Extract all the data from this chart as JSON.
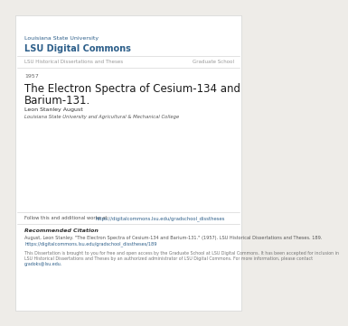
{
  "bg_color": "#eeece8",
  "page_bg": "#ffffff",
  "header_univ": "Louisiana State University",
  "header_title": "LSU Digital Commons",
  "header_color": "#2d5f8a",
  "nav_left": "LSU Historical Dissertations and Theses",
  "nav_right": "Graduate School",
  "nav_color": "#999999",
  "nav_fontsize": 4.0,
  "year": "1957",
  "year_fontsize": 4.5,
  "year_color": "#666666",
  "doc_title_line1": "The Electron Spectra of Cesium-134 and",
  "doc_title_line2": "Barium-131.",
  "doc_title_fontsize": 8.5,
  "doc_title_color": "#1a1a1a",
  "author": "Leon Stanley August",
  "author_fontsize": 4.5,
  "author_color": "#333333",
  "institution": "Louisiana State University and Agricultural & Mechanical College",
  "institution_fontsize": 3.8,
  "institution_color": "#555555",
  "follow_text": "Follow this and additional works at: ",
  "follow_link": "https://digitalcommons.lsu.edu/gradschool_disstheses",
  "follow_fontsize": 3.8,
  "follow_color": "#555555",
  "follow_link_color": "#2d5f8a",
  "rec_citation_header": "Recommended Citation",
  "rec_citation_header_fontsize": 4.5,
  "rec_citation_line1": "August, Leon Stanley. \"The Electron Spectra of Cesium-134 and Barium-131.\" (1957). LSU Historical Dissertations and Theses. 189.",
  "rec_citation_link": "https://digitalcommons.lsu.edu/gradschool_disstheses/189",
  "rec_citation_fontsize": 3.6,
  "rec_citation_color": "#555555",
  "disclaimer_line1": "This Dissertation is brought to you for free and open access by the Graduate School at LSU Digital Commons. It has been accepted for inclusion in",
  "disclaimer_line2": "LSU Historical Dissertations and Theses by an authorized administrator of LSU Digital Commons. For more information, please contact",
  "disclaimer_line3": "gradoks@lsu.edu.",
  "disclaimer_fontsize": 3.4,
  "disclaimer_color": "#777777",
  "disclaimer_link_color": "#2d5f8a",
  "line_color": "#cccccc",
  "univ_fontsize": 4.5,
  "header_title_fontsize": 7.0
}
